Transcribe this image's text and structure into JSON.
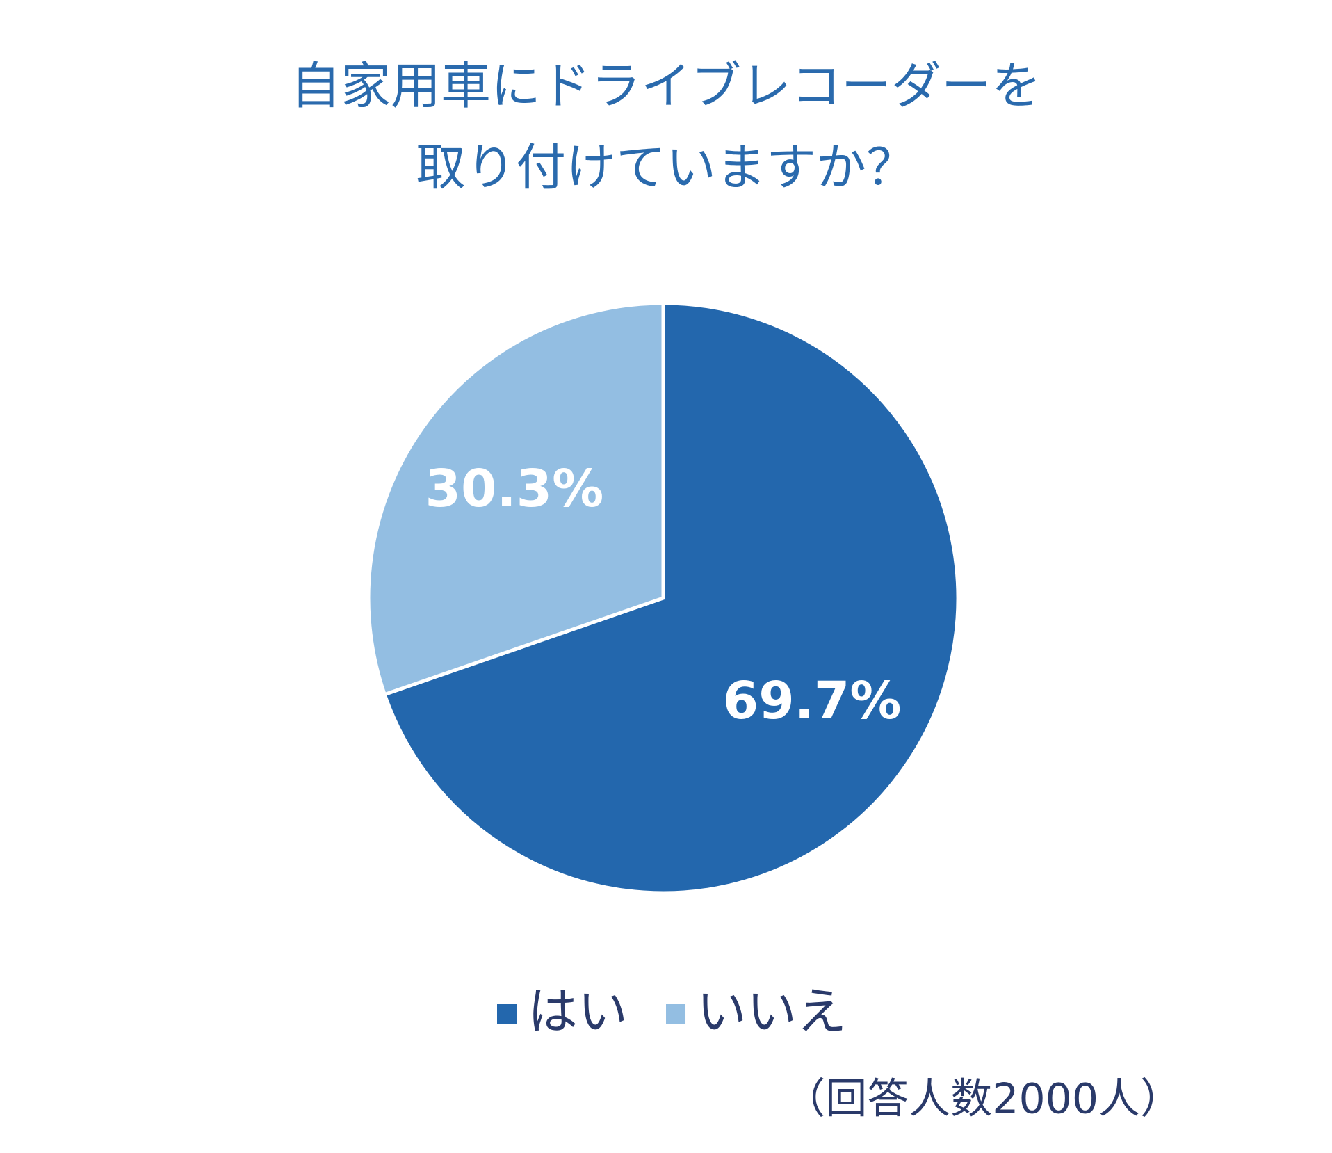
{
  "chart_data": {
    "type": "pie",
    "title": [
      "自家用車にドライブレコーダーを",
      "取り付けていますか？"
    ],
    "categories": [
      "はい",
      "いいえ"
    ],
    "values": [
      69.7,
      30.3
    ],
    "value_labels": [
      "69.7%",
      "30.3%"
    ],
    "colors": [
      "#2367ad",
      "#93bee2"
    ],
    "note": "（回答人数2000人）"
  }
}
